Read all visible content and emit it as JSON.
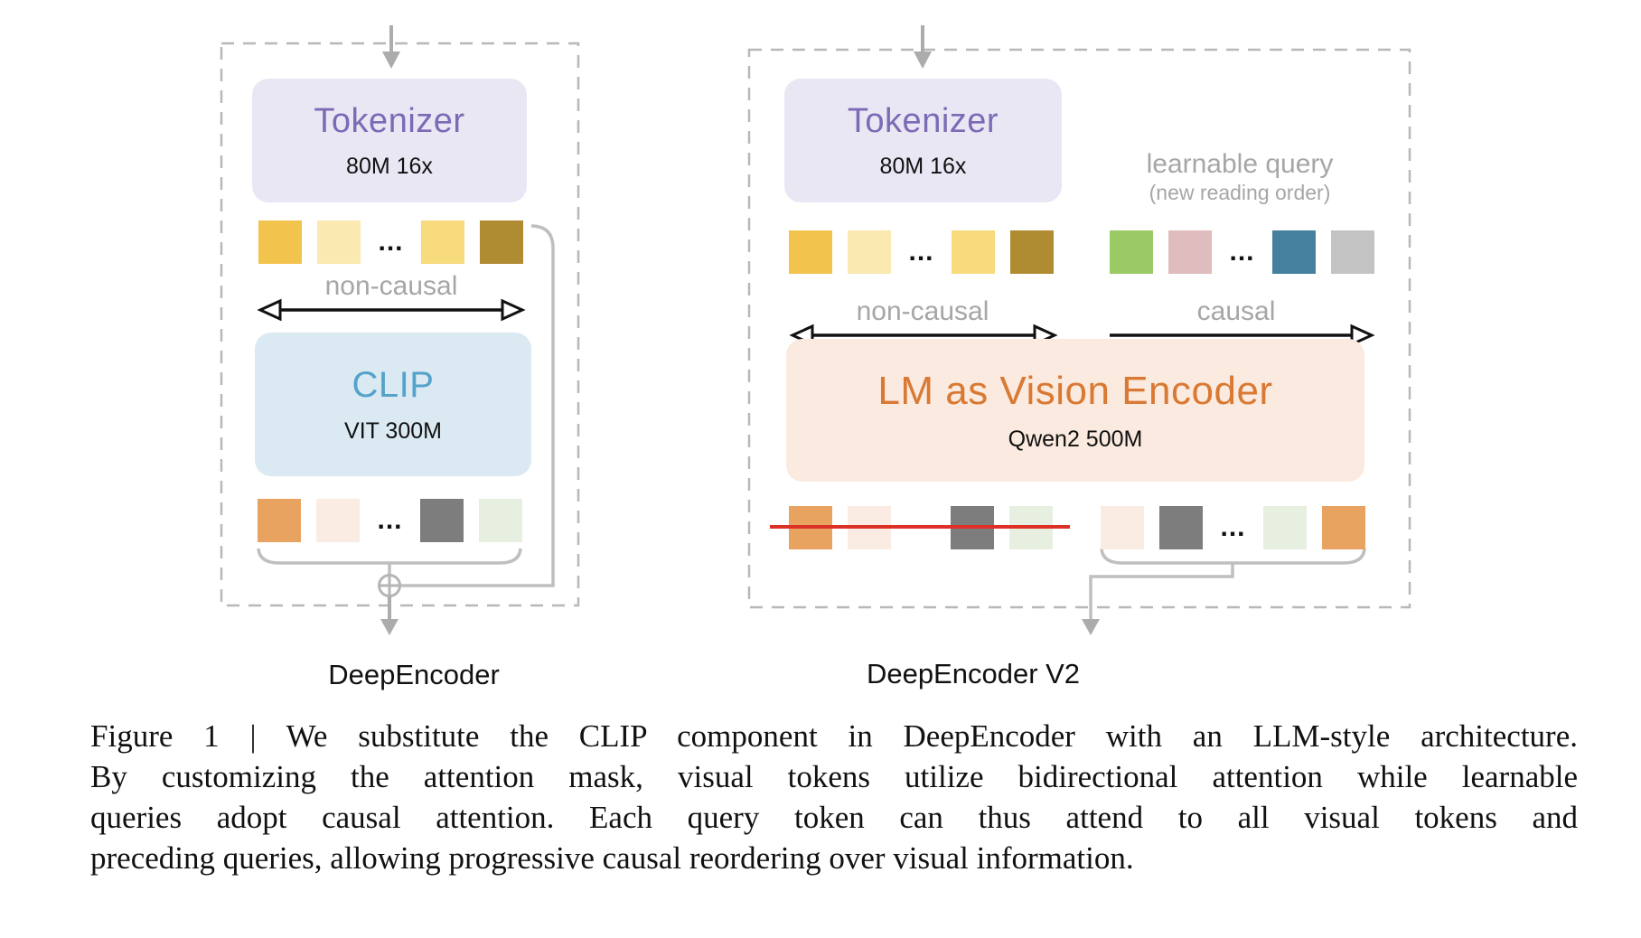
{
  "dots": "...",
  "left": {
    "tokenizer": {
      "title": "Tokenizer",
      "subtitle": "80M 16x"
    },
    "attention_label": "non-causal",
    "encoder": {
      "title": "CLIP",
      "subtitle": "VIT 300M"
    },
    "input_tokens": [
      {
        "color": "#F2C34D"
      },
      {
        "color": "#FAE9B1"
      },
      {
        "dots": true
      },
      {
        "color": "#F7DB7C"
      },
      {
        "color": "#AF8B31"
      }
    ],
    "output_tokens": [
      {
        "color": "#E9A360"
      },
      {
        "color": "#FAECE3"
      },
      {
        "dots": true
      },
      {
        "color": "#7D7D7D"
      },
      {
        "color": "#E7EFE0"
      }
    ],
    "label": "DeepEncoder"
  },
  "right": {
    "tokenizer": {
      "title": "Tokenizer",
      "subtitle": "80M 16x"
    },
    "learnable_query_label": "learnable query",
    "learnable_query_sublabel": "(new reading order)",
    "visual_attention_label": "non-causal",
    "query_attention_label": "causal",
    "encoder": {
      "title": "LM as Vision Encoder",
      "subtitle": "Qwen2 500M"
    },
    "input_tokens": [
      {
        "color": "#F2C34D"
      },
      {
        "color": "#FAE9B1"
      },
      {
        "dots": true
      },
      {
        "color": "#F7DB7C"
      },
      {
        "color": "#AF8B31"
      }
    ],
    "query_tokens": [
      {
        "color": "#9BCA65"
      },
      {
        "color": "#DFBCBE"
      },
      {
        "dots": true
      },
      {
        "color": "#45809F"
      },
      {
        "color": "#C3C3C3"
      }
    ],
    "crossed_tokens": [
      {
        "color": "#E9A360"
      },
      {
        "color": "#FAECE3"
      },
      {
        "gap": true
      },
      {
        "color": "#7D7D7D"
      },
      {
        "color": "#E7EFE0"
      }
    ],
    "reordered_tokens": [
      {
        "color": "#FAECE3"
      },
      {
        "color": "#7D7D7D"
      },
      {
        "dots": true
      },
      {
        "color": "#E7EFE0"
      },
      {
        "color": "#E9A360"
      }
    ],
    "label": "DeepEncoder V2"
  },
  "caption": {
    "lines": [
      "Figure 1 | We substitute the CLIP component in DeepEncoder with an LLM-style architecture.",
      "By customizing the attention mask, visual tokens utilize bidirectional attention while learnable",
      "queries adopt causal attention.  Each query token can thus attend to all visual tokens and",
      "preceding queries, allowing progressive causal reordering over visual information."
    ]
  },
  "colors": {
    "tokenizer_title": "#7C6AB5",
    "clip_title": "#54A3CB",
    "lm_title": "#D97933",
    "strike_red": "#DC3127",
    "label_gray": "#A6A6A6",
    "line_gray": "#BFBFBF",
    "dash_gray": "#B8B8B8",
    "arrow_gray": "#ACACAC",
    "arrow_black": "#111111"
  }
}
